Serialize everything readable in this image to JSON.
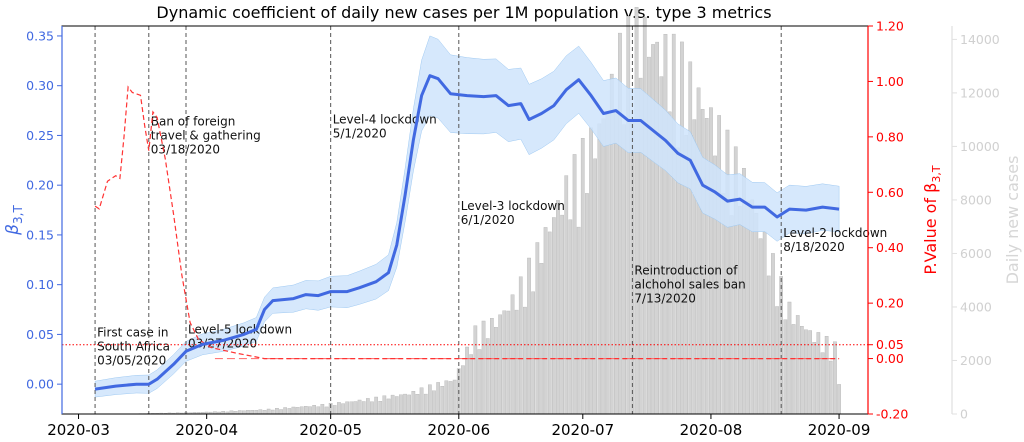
{
  "chart_data": {
    "type": "line",
    "title": "Dynamic coefficient of daily new cases per 1M population v.s. type 3 metrics",
    "x_ticks": [
      "2020-03",
      "2020-04",
      "2020-05",
      "2020-06",
      "2020-07",
      "2020-08",
      "2020-09"
    ],
    "x_range": [
      "2020-02-26",
      "2020-09-08"
    ],
    "left_axis": {
      "label": "β3,T",
      "ylim": [
        -0.03,
        0.36
      ],
      "ticks": [
        "0.00",
        "0.05",
        "0.10",
        "0.15",
        "0.20",
        "0.25",
        "0.30",
        "0.35"
      ],
      "color": "#4169E1"
    },
    "right_axis": {
      "label": "P.Value of β3,T",
      "ylim": [
        -0.2,
        1.2
      ],
      "ticks": [
        "-0.20",
        "0.00",
        "0.05",
        "0.20",
        "0.40",
        "0.60",
        "0.80",
        "1.00",
        "1.20"
      ],
      "color": "#ff0000"
    },
    "far_right_axis": {
      "label": "Daily new cases",
      "ylim": [
        0,
        14500
      ],
      "ticks": [
        "0",
        "2000",
        "4000",
        "6000",
        "8000",
        "10000",
        "12000",
        "14000"
      ],
      "color": "#d0d0d0"
    },
    "beta_series": {
      "color": "#4169E1",
      "band_color": "#cfe4fb",
      "points": [
        [
          "2020-03-05",
          -0.005
        ],
        [
          "2020-03-10",
          -0.002
        ],
        [
          "2020-03-15",
          0.0
        ],
        [
          "2020-03-18",
          0.0
        ],
        [
          "2020-03-20",
          0.005
        ],
        [
          "2020-03-24",
          0.02
        ],
        [
          "2020-03-27",
          0.033
        ],
        [
          "2020-03-31",
          0.04
        ],
        [
          "2020-04-05",
          0.044
        ],
        [
          "2020-04-10",
          0.05
        ],
        [
          "2020-04-13",
          0.055
        ],
        [
          "2020-04-15",
          0.075
        ],
        [
          "2020-04-17",
          0.084
        ],
        [
          "2020-04-22",
          0.086
        ],
        [
          "2020-04-25",
          0.09
        ],
        [
          "2020-04-28",
          0.089
        ],
        [
          "2020-05-01",
          0.093
        ],
        [
          "2020-05-05",
          0.093
        ],
        [
          "2020-05-08",
          0.097
        ],
        [
          "2020-05-12",
          0.103
        ],
        [
          "2020-05-15",
          0.112
        ],
        [
          "2020-05-17",
          0.14
        ],
        [
          "2020-05-19",
          0.19
        ],
        [
          "2020-05-21",
          0.245
        ],
        [
          "2020-05-23",
          0.29
        ],
        [
          "2020-05-25",
          0.31
        ],
        [
          "2020-05-27",
          0.307
        ],
        [
          "2020-05-30",
          0.292
        ],
        [
          "2020-06-03",
          0.29
        ],
        [
          "2020-06-07",
          0.289
        ],
        [
          "2020-06-10",
          0.29
        ],
        [
          "2020-06-13",
          0.28
        ],
        [
          "2020-06-16",
          0.282
        ],
        [
          "2020-06-18",
          0.266
        ],
        [
          "2020-06-21",
          0.272
        ],
        [
          "2020-06-24",
          0.28
        ],
        [
          "2020-06-27",
          0.296
        ],
        [
          "2020-06-30",
          0.306
        ],
        [
          "2020-07-03",
          0.29
        ],
        [
          "2020-07-06",
          0.272
        ],
        [
          "2020-07-09",
          0.275
        ],
        [
          "2020-07-12",
          0.265
        ],
        [
          "2020-07-15",
          0.265
        ],
        [
          "2020-07-18",
          0.255
        ],
        [
          "2020-07-21",
          0.245
        ],
        [
          "2020-07-24",
          0.232
        ],
        [
          "2020-07-27",
          0.225
        ],
        [
          "2020-07-30",
          0.2
        ],
        [
          "2020-08-02",
          0.193
        ],
        [
          "2020-08-05",
          0.184
        ],
        [
          "2020-08-08",
          0.186
        ],
        [
          "2020-08-11",
          0.178
        ],
        [
          "2020-08-14",
          0.178
        ],
        [
          "2020-08-17",
          0.168
        ],
        [
          "2020-08-20",
          0.176
        ],
        [
          "2020-08-24",
          0.175
        ],
        [
          "2020-08-28",
          0.178
        ],
        [
          "2020-09-01",
          0.176
        ]
      ],
      "band_width": [
        [
          "2020-03-05",
          0.008
        ],
        [
          "2020-03-27",
          0.01
        ],
        [
          "2020-04-13",
          0.012
        ],
        [
          "2020-05-15",
          0.018
        ],
        [
          "2020-05-25",
          0.04
        ],
        [
          "2020-06-20",
          0.035
        ],
        [
          "2020-07-15",
          0.032
        ],
        [
          "2020-08-10",
          0.025
        ],
        [
          "2020-09-01",
          0.023
        ]
      ]
    },
    "pvalue_series": {
      "color": "#ff3333",
      "style": "dashed",
      "points": [
        [
          "2020-03-05",
          0.55
        ],
        [
          "2020-03-06",
          0.54
        ],
        [
          "2020-03-08",
          0.64
        ],
        [
          "2020-03-10",
          0.66
        ],
        [
          "2020-03-11",
          0.65
        ],
        [
          "2020-03-12",
          0.8
        ],
        [
          "2020-03-13",
          0.98
        ],
        [
          "2020-03-14",
          0.96
        ],
        [
          "2020-03-16",
          0.95
        ],
        [
          "2020-03-17",
          0.84
        ],
        [
          "2020-03-18",
          0.75
        ],
        [
          "2020-03-19",
          0.89
        ],
        [
          "2020-03-20",
          0.87
        ],
        [
          "2020-03-22",
          0.72
        ],
        [
          "2020-03-24",
          0.52
        ],
        [
          "2020-03-26",
          0.3
        ],
        [
          "2020-03-28",
          0.13
        ],
        [
          "2020-03-30",
          0.07
        ],
        [
          "2020-04-02",
          0.04
        ],
        [
          "2020-04-08",
          0.02
        ],
        [
          "2020-04-15",
          0.0
        ],
        [
          "2020-05-15",
          0.0
        ],
        [
          "2020-09-01",
          0.0
        ]
      ]
    },
    "reference_lines": [
      {
        "axis": "right",
        "value": 0.05,
        "style": "dotted",
        "color": "#ff0000"
      },
      {
        "axis": "right",
        "value": 0.0,
        "style": "dashed",
        "color": "#ff6666"
      }
    ],
    "daily_cases": {
      "color": "#d3d3d3",
      "points": [
        [
          "2020-03-15",
          10
        ],
        [
          "2020-03-31",
          60
        ],
        [
          "2020-04-15",
          150
        ],
        [
          "2020-04-30",
          320
        ],
        [
          "2020-05-10",
          500
        ],
        [
          "2020-05-20",
          700
        ],
        [
          "2020-05-31",
          1200
        ],
        [
          "2020-06-05",
          2800
        ],
        [
          "2020-06-10",
          3200
        ],
        [
          "2020-06-15",
          4100
        ],
        [
          "2020-06-20",
          5500
        ],
        [
          "2020-06-25",
          7200
        ],
        [
          "2020-06-30",
          8500
        ],
        [
          "2020-07-05",
          9800
        ],
        [
          "2020-07-10",
          12200
        ],
        [
          "2020-07-15",
          13200
        ],
        [
          "2020-07-20",
          12500
        ],
        [
          "2020-07-25",
          11800
        ],
        [
          "2020-07-31",
          10500
        ],
        [
          "2020-08-05",
          9000
        ],
        [
          "2020-08-10",
          7800
        ],
        [
          "2020-08-15",
          5500
        ],
        [
          "2020-08-20",
          3600
        ],
        [
          "2020-08-25",
          2800
        ],
        [
          "2020-08-31",
          2300
        ],
        [
          "2020-09-01",
          1200
        ]
      ]
    },
    "events": [
      {
        "date": "2020-03-05",
        "label": [
          "First case in",
          "South Africa",
          "03/05/2020"
        ],
        "label_y": 0.048
      },
      {
        "date": "2020-03-18",
        "label": [
          "Ban of foreign",
          "travel & gathering",
          "03/18/2020"
        ],
        "label_y": 0.26
      },
      {
        "date": "2020-03-27",
        "label": [
          "Level-5 lockdown",
          "03/27/2020"
        ],
        "label_y": 0.051
      },
      {
        "date": "2020-05-01",
        "label": [
          "Level-4 lockdown",
          "5/1/2020"
        ],
        "label_y": 0.262
      },
      {
        "date": "2020-06-01",
        "label": [
          "Level-3 lockdown",
          "6/1/2020"
        ],
        "label_y": 0.175
      },
      {
        "date": "2020-07-13",
        "label": [
          "Reintroduction of",
          "alchohol sales ban",
          "7/13/2020"
        ],
        "label_y": 0.11
      },
      {
        "date": "2020-08-18",
        "label": [
          "Level-2 lockdown",
          "8/18/2020"
        ],
        "label_y": 0.148
      }
    ]
  }
}
